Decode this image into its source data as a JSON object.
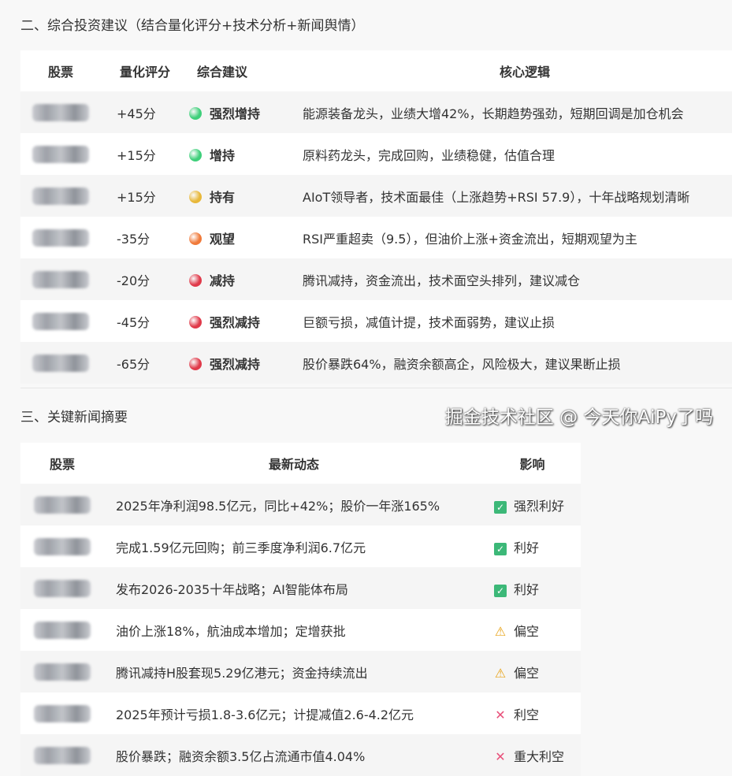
{
  "section2": {
    "title": "二、综合投资建议（结合量化评分+技术分析+新闻舆情）",
    "headers": [
      "股票",
      "量化评分",
      "综合建议",
      "核心逻辑"
    ],
    "rows": [
      {
        "score": "+45分",
        "advice": "强烈增持",
        "color": "#3ecf7a",
        "logic": "能源装备龙头，业绩大增42%，长期趋势强劲，短期回调是加仓机会"
      },
      {
        "score": "+15分",
        "advice": "增持",
        "color": "#3ecf7a",
        "logic": "原料药龙头，完成回购，业绩稳健，估值合理"
      },
      {
        "score": "+15分",
        "advice": "持有",
        "color": "#e8b83a",
        "logic": "AIoT领导者，技术面最佳（上涨趋势+RSI 57.9），十年战略规划清晰"
      },
      {
        "score": "-35分",
        "advice": "观望",
        "color": "#f07a3a",
        "logic": "RSI严重超卖（9.5），但油价上涨+资金流出，短期观望为主"
      },
      {
        "score": "-20分",
        "advice": "减持",
        "color": "#e03a4a",
        "logic": "腾讯减持，资金流出，技术面空头排列，建议减仓"
      },
      {
        "score": "-45分",
        "advice": "强烈减持",
        "color": "#e03a4a",
        "logic": "巨额亏损，减值计提，技术面弱势，建议止损"
      },
      {
        "score": "-65分",
        "advice": "强烈减持",
        "color": "#e03a4a",
        "logic": "股价暴跌64%，融资余额高企，风险极大，建议果断止损"
      }
    ]
  },
  "section3": {
    "title": "三、关键新闻摘要",
    "headers": [
      "股票",
      "最新动态",
      "影响"
    ],
    "rows": [
      {
        "news": "2025年净利润98.5亿元，同比+42%；股价一年涨165%",
        "icon": "check-icon",
        "impact": "强烈利好"
      },
      {
        "news": "完成1.59亿元回购；前三季度净利润6.7亿元",
        "icon": "check-icon",
        "impact": "利好"
      },
      {
        "news": "发布2026-2035十年战略；AI智能体布局",
        "icon": "check-icon",
        "impact": "利好"
      },
      {
        "news": "油价上涨18%，航油成本增加；定增获批",
        "icon": "warning-icon",
        "impact": "偏空"
      },
      {
        "news": "腾讯减持H股套现5.29亿港元；资金持续流出",
        "icon": "warning-icon",
        "impact": "偏空"
      },
      {
        "news": "2025年预计亏损1.8-3.6亿元；计提减值2.6-4.2亿元",
        "icon": "cross-icon",
        "impact": "利空"
      },
      {
        "news": "股价暴跌；融资余额3.5亿占流通市值4.04%",
        "icon": "cross-icon",
        "impact": "重大利空"
      }
    ]
  },
  "watermark": "掘金技术社区 @ 今天你AiPy了吗"
}
